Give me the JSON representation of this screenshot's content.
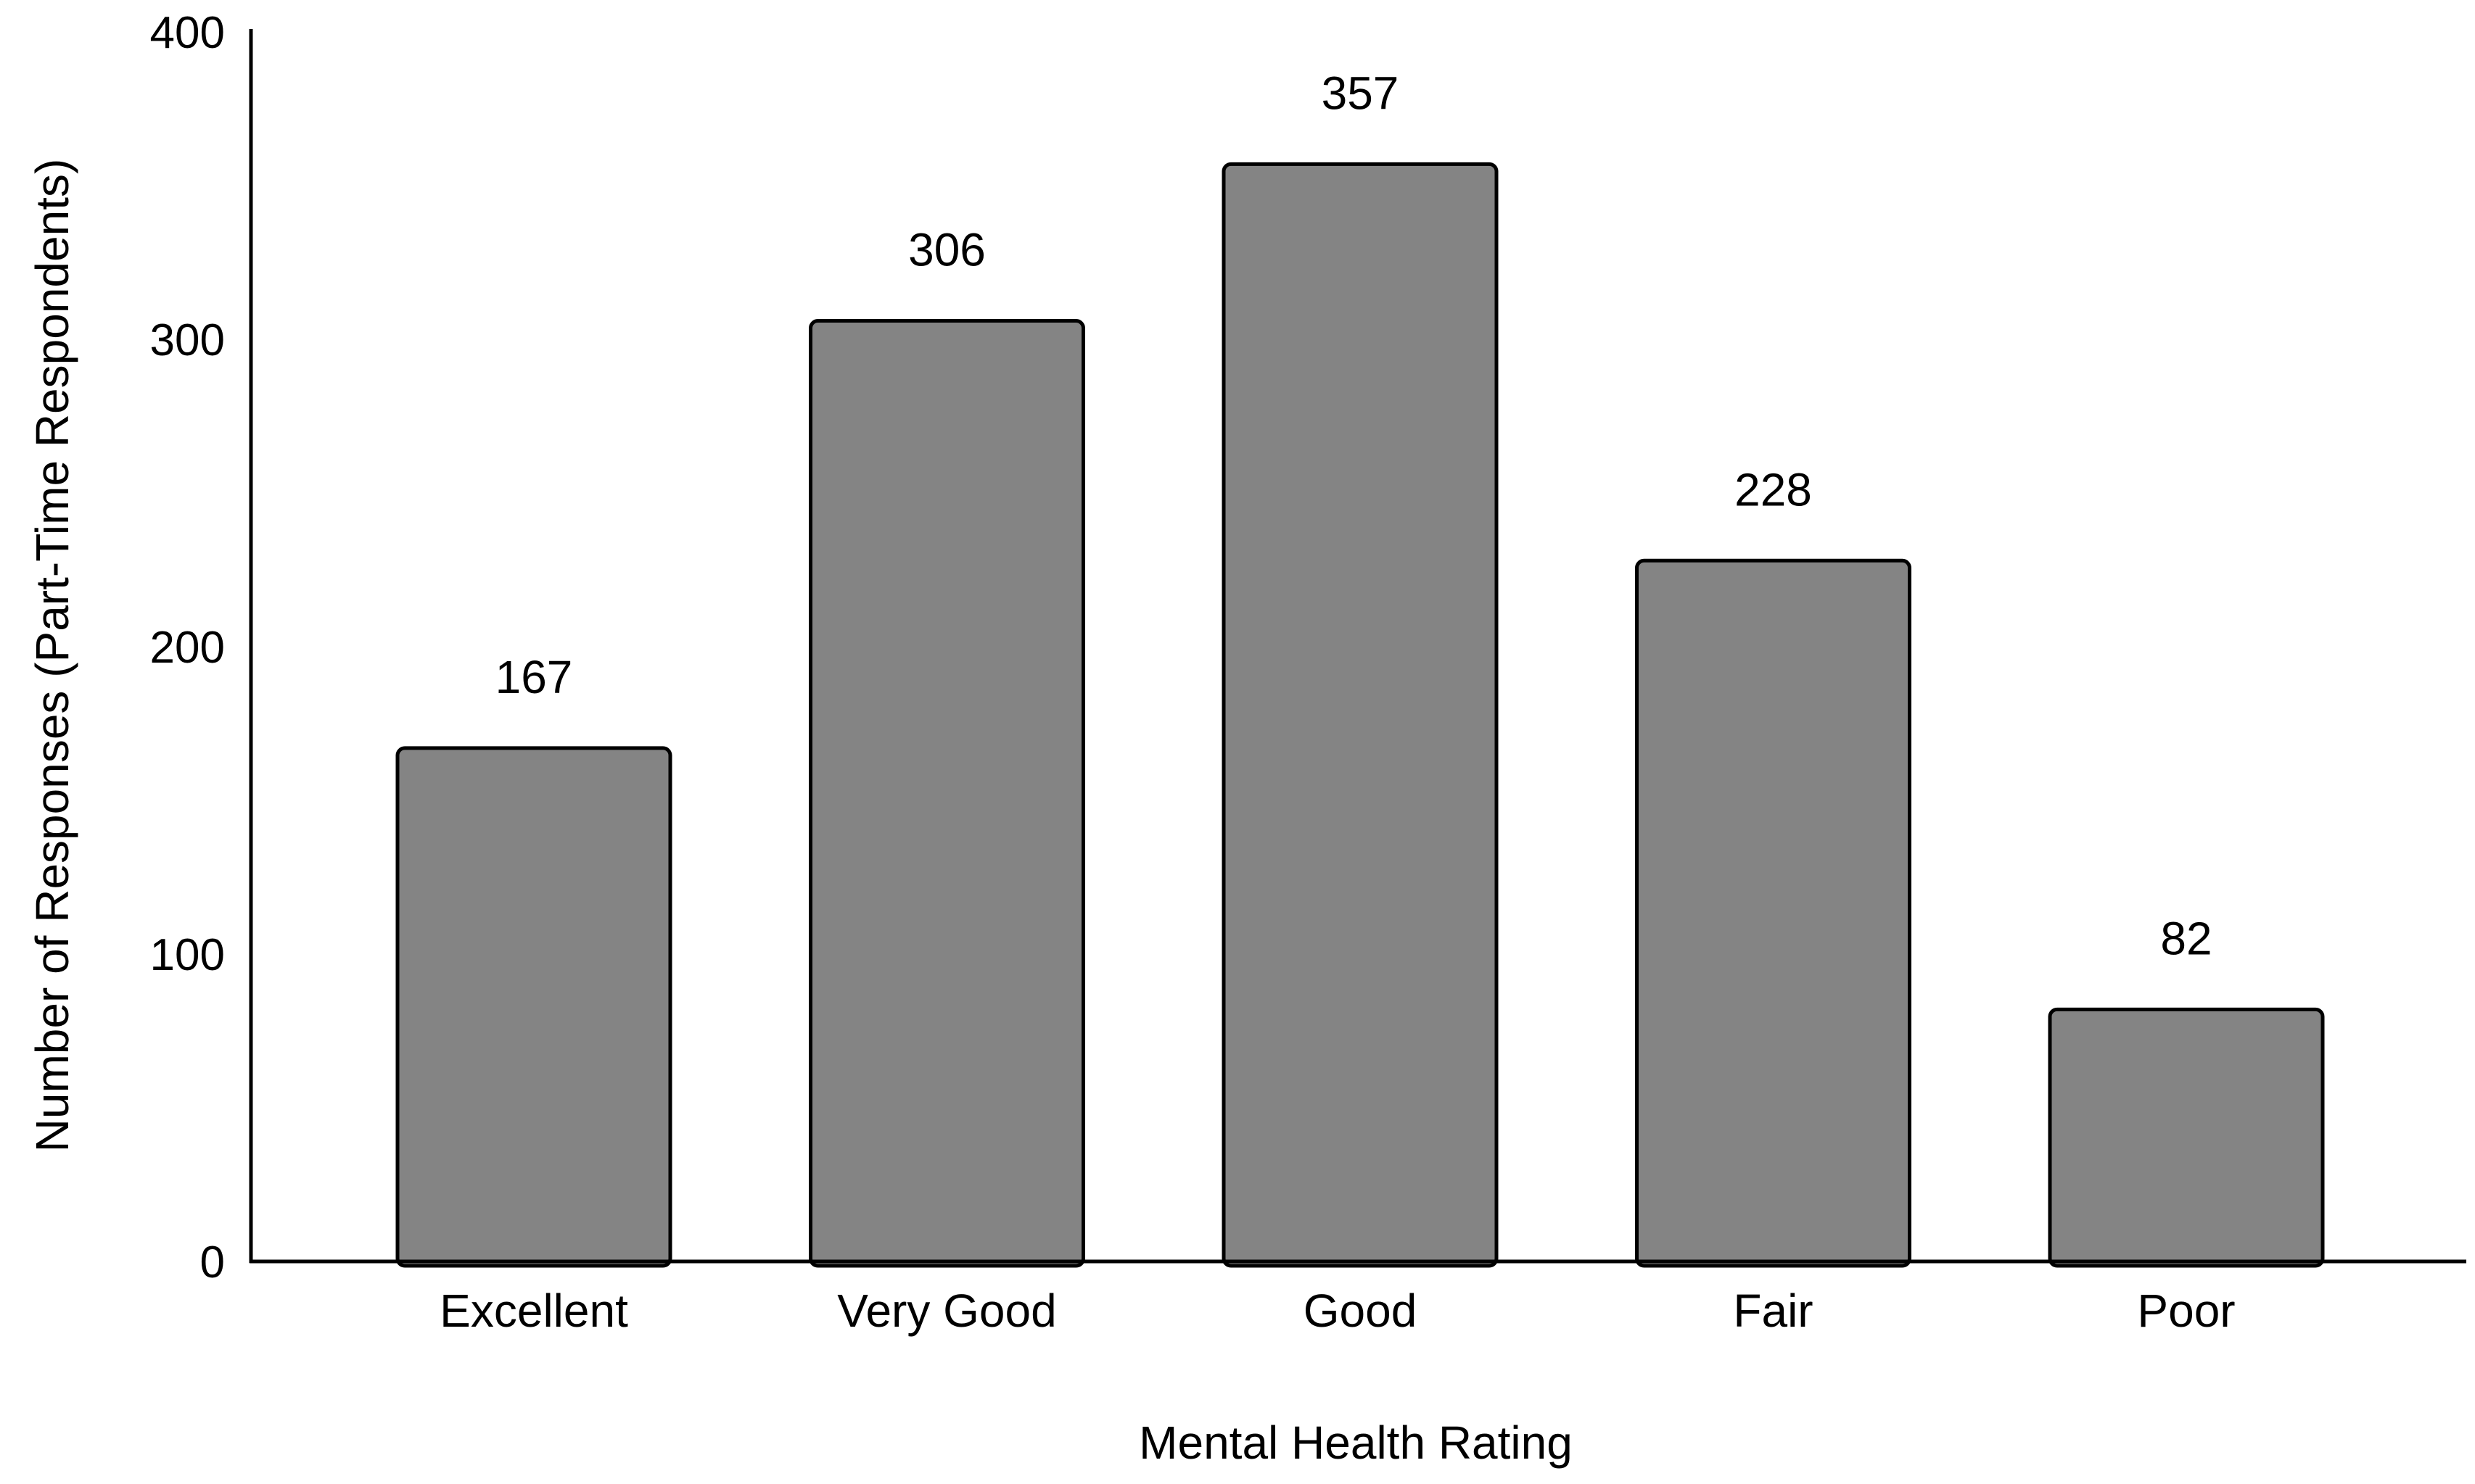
{
  "chart_data": {
    "type": "bar",
    "title": "",
    "xlabel": "Mental Health Rating",
    "ylabel": "Number of Responses (Part-Time Respondents)",
    "categories": [
      "Excellent",
      "Very Good",
      "Good",
      "Fair",
      "Poor"
    ],
    "values": [
      167,
      306,
      357,
      228,
      82
    ],
    "data_labels": [
      "167",
      "306",
      "357",
      "228",
      "82"
    ],
    "ylim": [
      0,
      400
    ],
    "yticks": [
      0,
      100,
      200,
      300,
      400
    ],
    "ytick_labels": [
      "0",
      "100",
      "200",
      "300",
      "400"
    ],
    "grid": false,
    "legend": "none",
    "bar_color": "#848484",
    "bar_edge_color": "#000000",
    "axis_color": "#000000"
  }
}
